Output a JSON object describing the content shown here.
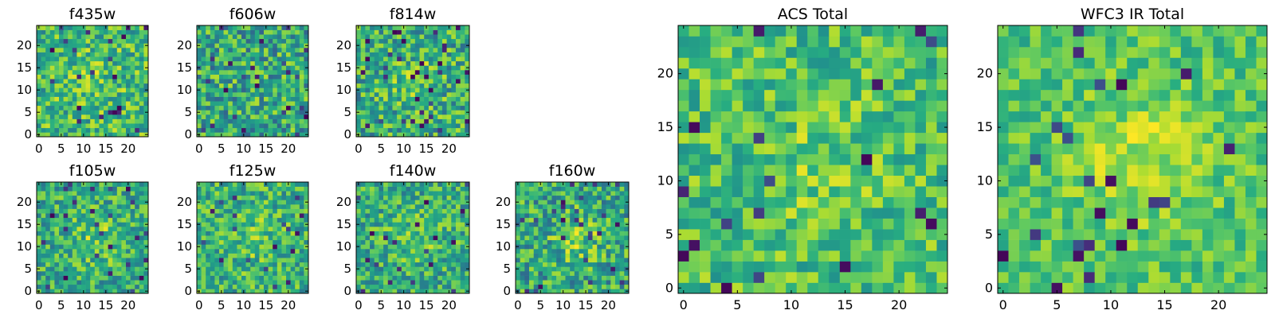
{
  "figure": {
    "title": ""
  },
  "colormap": {
    "name": "viridis",
    "stops": [
      "#440154",
      "#3b528b",
      "#21918c",
      "#5ec962",
      "#fde725"
    ]
  },
  "chart_data": [
    {
      "type": "heatmap",
      "title": "f435w",
      "grid_size": 25,
      "x_ticks": [
        "0",
        "5",
        "10",
        "15",
        "20"
      ],
      "y_ticks": [
        "0",
        "5",
        "10",
        "15",
        "20"
      ],
      "xlim": [
        0,
        25
      ],
      "ylim": [
        0,
        25
      ],
      "value_range": [
        0,
        1
      ],
      "values_summary": "noisy 25x25 pixel image, mostly green-yellow with scattered dark-blue pixels"
    },
    {
      "type": "heatmap",
      "title": "f606w",
      "grid_size": 25,
      "x_ticks": [
        "0",
        "5",
        "10",
        "15",
        "20"
      ],
      "y_ticks": [
        "0",
        "5",
        "10",
        "15",
        "20"
      ],
      "xlim": [
        0,
        25
      ],
      "ylim": [
        0,
        25
      ],
      "value_range": [
        0,
        1
      ]
    },
    {
      "type": "heatmap",
      "title": "f814w",
      "grid_size": 25,
      "x_ticks": [
        "0",
        "5",
        "10",
        "15",
        "20"
      ],
      "y_ticks": [
        "0",
        "5",
        "10",
        "15",
        "20"
      ],
      "xlim": [
        0,
        25
      ],
      "ylim": [
        0,
        25
      ],
      "value_range": [
        0,
        1
      ]
    },
    {
      "type": "heatmap",
      "title": "f105w",
      "grid_size": 25,
      "x_ticks": [
        "0",
        "5",
        "10",
        "15",
        "20"
      ],
      "y_ticks": [
        "0",
        "5",
        "10",
        "15",
        "20"
      ],
      "xlim": [
        0,
        25
      ],
      "ylim": [
        0,
        25
      ],
      "value_range": [
        0,
        1
      ]
    },
    {
      "type": "heatmap",
      "title": "f125w",
      "grid_size": 25,
      "x_ticks": [
        "0",
        "5",
        "10",
        "15",
        "20"
      ],
      "y_ticks": [
        "0",
        "5",
        "10",
        "15",
        "20"
      ],
      "xlim": [
        0,
        25
      ],
      "ylim": [
        0,
        25
      ],
      "value_range": [
        0,
        1
      ]
    },
    {
      "type": "heatmap",
      "title": "f140w",
      "grid_size": 25,
      "x_ticks": [
        "0",
        "5",
        "10",
        "15",
        "20"
      ],
      "y_ticks": [
        "0",
        "5",
        "10",
        "15",
        "20"
      ],
      "xlim": [
        0,
        25
      ],
      "ylim": [
        0,
        25
      ],
      "value_range": [
        0,
        1
      ]
    },
    {
      "type": "heatmap",
      "title": "f160w",
      "grid_size": 25,
      "x_ticks": [
        "0",
        "5",
        "10",
        "15",
        "20"
      ],
      "y_ticks": [
        "0",
        "5",
        "10",
        "15",
        "20"
      ],
      "xlim": [
        0,
        25
      ],
      "ylim": [
        0,
        25
      ],
      "value_range": [
        0,
        1
      ]
    },
    {
      "type": "heatmap",
      "title": "ACS Total",
      "grid_size": 25,
      "x_ticks": [
        "0",
        "5",
        "10",
        "15",
        "20"
      ],
      "y_ticks": [
        "0",
        "5",
        "10",
        "15",
        "20"
      ],
      "xlim": [
        0,
        25
      ],
      "ylim": [
        0,
        25
      ],
      "value_range": [
        0,
        1
      ]
    },
    {
      "type": "heatmap",
      "title": "WFC3 IR Total",
      "grid_size": 25,
      "x_ticks": [
        "0",
        "5",
        "10",
        "15",
        "20"
      ],
      "y_ticks": [
        "0",
        "5",
        "10",
        "15",
        "20"
      ],
      "xlim": [
        0,
        25
      ],
      "ylim": [
        0,
        25
      ],
      "value_range": [
        0,
        1
      ]
    }
  ]
}
